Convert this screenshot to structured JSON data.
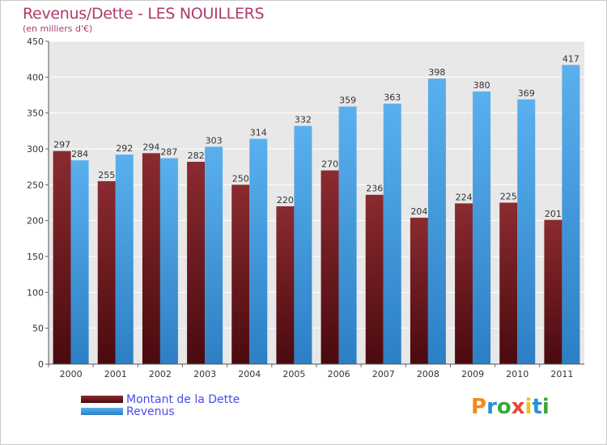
{
  "chart_data": {
    "type": "bar",
    "title": "Revenus/Dette - LES NOUILLERS",
    "subtitle": "(en milliers d'€)",
    "categories": [
      "2000",
      "2001",
      "2002",
      "2003",
      "2004",
      "2005",
      "2006",
      "2007",
      "2008",
      "2009",
      "2010",
      "2011"
    ],
    "series": [
      {
        "name": "Montant de la Dette",
        "color": "#7a1f24",
        "values": [
          297,
          255,
          294,
          282,
          250,
          220,
          270,
          236,
          204,
          224,
          225,
          201
        ]
      },
      {
        "name": "Revenus",
        "color": "#4aa3e8",
        "values": [
          284,
          292,
          287,
          303,
          314,
          332,
          359,
          363,
          398,
          380,
          369,
          417
        ]
      }
    ],
    "ylim": [
      0,
      450
    ],
    "yticks": [
      0,
      50,
      100,
      150,
      200,
      250,
      300,
      350,
      400,
      450
    ],
    "grid": true,
    "legend_position": "bottom-left"
  },
  "logo": {
    "letters": [
      "P",
      "r",
      "o",
      "x",
      "i",
      "t",
      "i"
    ],
    "colors": [
      "#f08a1c",
      "#2a8fd8",
      "#3aa83a",
      "#e8463a",
      "#f0c020",
      "#2a8fd8",
      "#3aa83a"
    ]
  }
}
